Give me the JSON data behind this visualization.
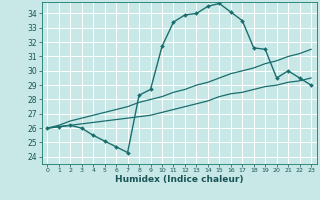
{
  "title": "",
  "xlabel": "Humidex (Indice chaleur)",
  "bg_color": "#c8e8e8",
  "grid_color": "#ffffff",
  "line_color": "#1a6e6e",
  "xlim": [
    -0.5,
    23.5
  ],
  "ylim": [
    23.5,
    34.8
  ],
  "yticks": [
    24,
    25,
    26,
    27,
    28,
    29,
    30,
    31,
    32,
    33,
    34
  ],
  "xticks": [
    0,
    1,
    2,
    3,
    4,
    5,
    6,
    7,
    8,
    9,
    10,
    11,
    12,
    13,
    14,
    15,
    16,
    17,
    18,
    19,
    20,
    21,
    22,
    23
  ],
  "line1_x": [
    0,
    1,
    2,
    3,
    4,
    5,
    6,
    7,
    8,
    9,
    10,
    11,
    12,
    13,
    14,
    15,
    16,
    17,
    18,
    19,
    20,
    21,
    22,
    23
  ],
  "line1_y": [
    26.0,
    26.1,
    26.2,
    26.0,
    25.5,
    25.1,
    24.7,
    24.3,
    28.3,
    28.7,
    31.7,
    33.4,
    33.9,
    34.0,
    34.5,
    34.7,
    34.1,
    33.5,
    31.6,
    31.5,
    29.5,
    30.0,
    29.5,
    29.0
  ],
  "line2_x": [
    0,
    1,
    2,
    3,
    4,
    5,
    6,
    7,
    8,
    9,
    10,
    11,
    12,
    13,
    14,
    15,
    16,
    17,
    18,
    19,
    20,
    21,
    22,
    23
  ],
  "line2_y": [
    26.0,
    26.1,
    26.2,
    26.3,
    26.4,
    26.5,
    26.6,
    26.7,
    26.8,
    26.9,
    27.1,
    27.3,
    27.5,
    27.7,
    27.9,
    28.2,
    28.4,
    28.5,
    28.7,
    28.9,
    29.0,
    29.2,
    29.3,
    29.5
  ],
  "line3_x": [
    0,
    1,
    2,
    3,
    4,
    5,
    6,
    7,
    8,
    9,
    10,
    11,
    12,
    13,
    14,
    15,
    16,
    17,
    18,
    19,
    20,
    21,
    22,
    23
  ],
  "line3_y": [
    26.0,
    26.2,
    26.5,
    26.7,
    26.9,
    27.1,
    27.3,
    27.5,
    27.8,
    28.0,
    28.2,
    28.5,
    28.7,
    29.0,
    29.2,
    29.5,
    29.8,
    30.0,
    30.2,
    30.5,
    30.7,
    31.0,
    31.2,
    31.5
  ]
}
